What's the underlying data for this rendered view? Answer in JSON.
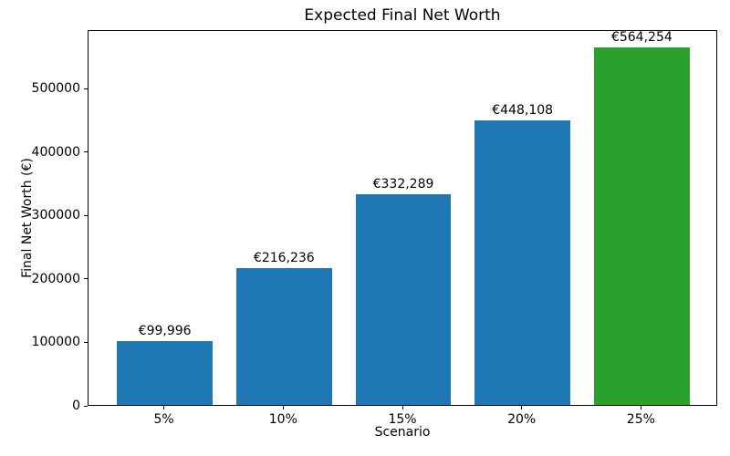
{
  "chart_data": {
    "type": "bar",
    "title": "Expected Final Net Worth",
    "xlabel": "Scenario",
    "ylabel": "Final Net Worth (€)",
    "categories": [
      "5%",
      "10%",
      "15%",
      "20%",
      "25%"
    ],
    "values": [
      99996,
      216236,
      332289,
      448108,
      564254
    ],
    "bar_labels": [
      "€99,996",
      "€216,236",
      "€332,289",
      "€448,108",
      "€564,254"
    ],
    "bar_colors": [
      "#1f77b4",
      "#1f77b4",
      "#1f77b4",
      "#1f77b4",
      "#2ca02c"
    ],
    "accent_blue": "#1f77b4",
    "accent_green": "#2ca02c",
    "yticks": [
      0,
      100000,
      200000,
      300000,
      400000,
      500000
    ],
    "ytick_labels": [
      "0",
      "100000",
      "200000",
      "300000",
      "400000",
      "500000"
    ],
    "ylim": [
      0,
      592467
    ],
    "grid": false,
    "legend": false
  }
}
